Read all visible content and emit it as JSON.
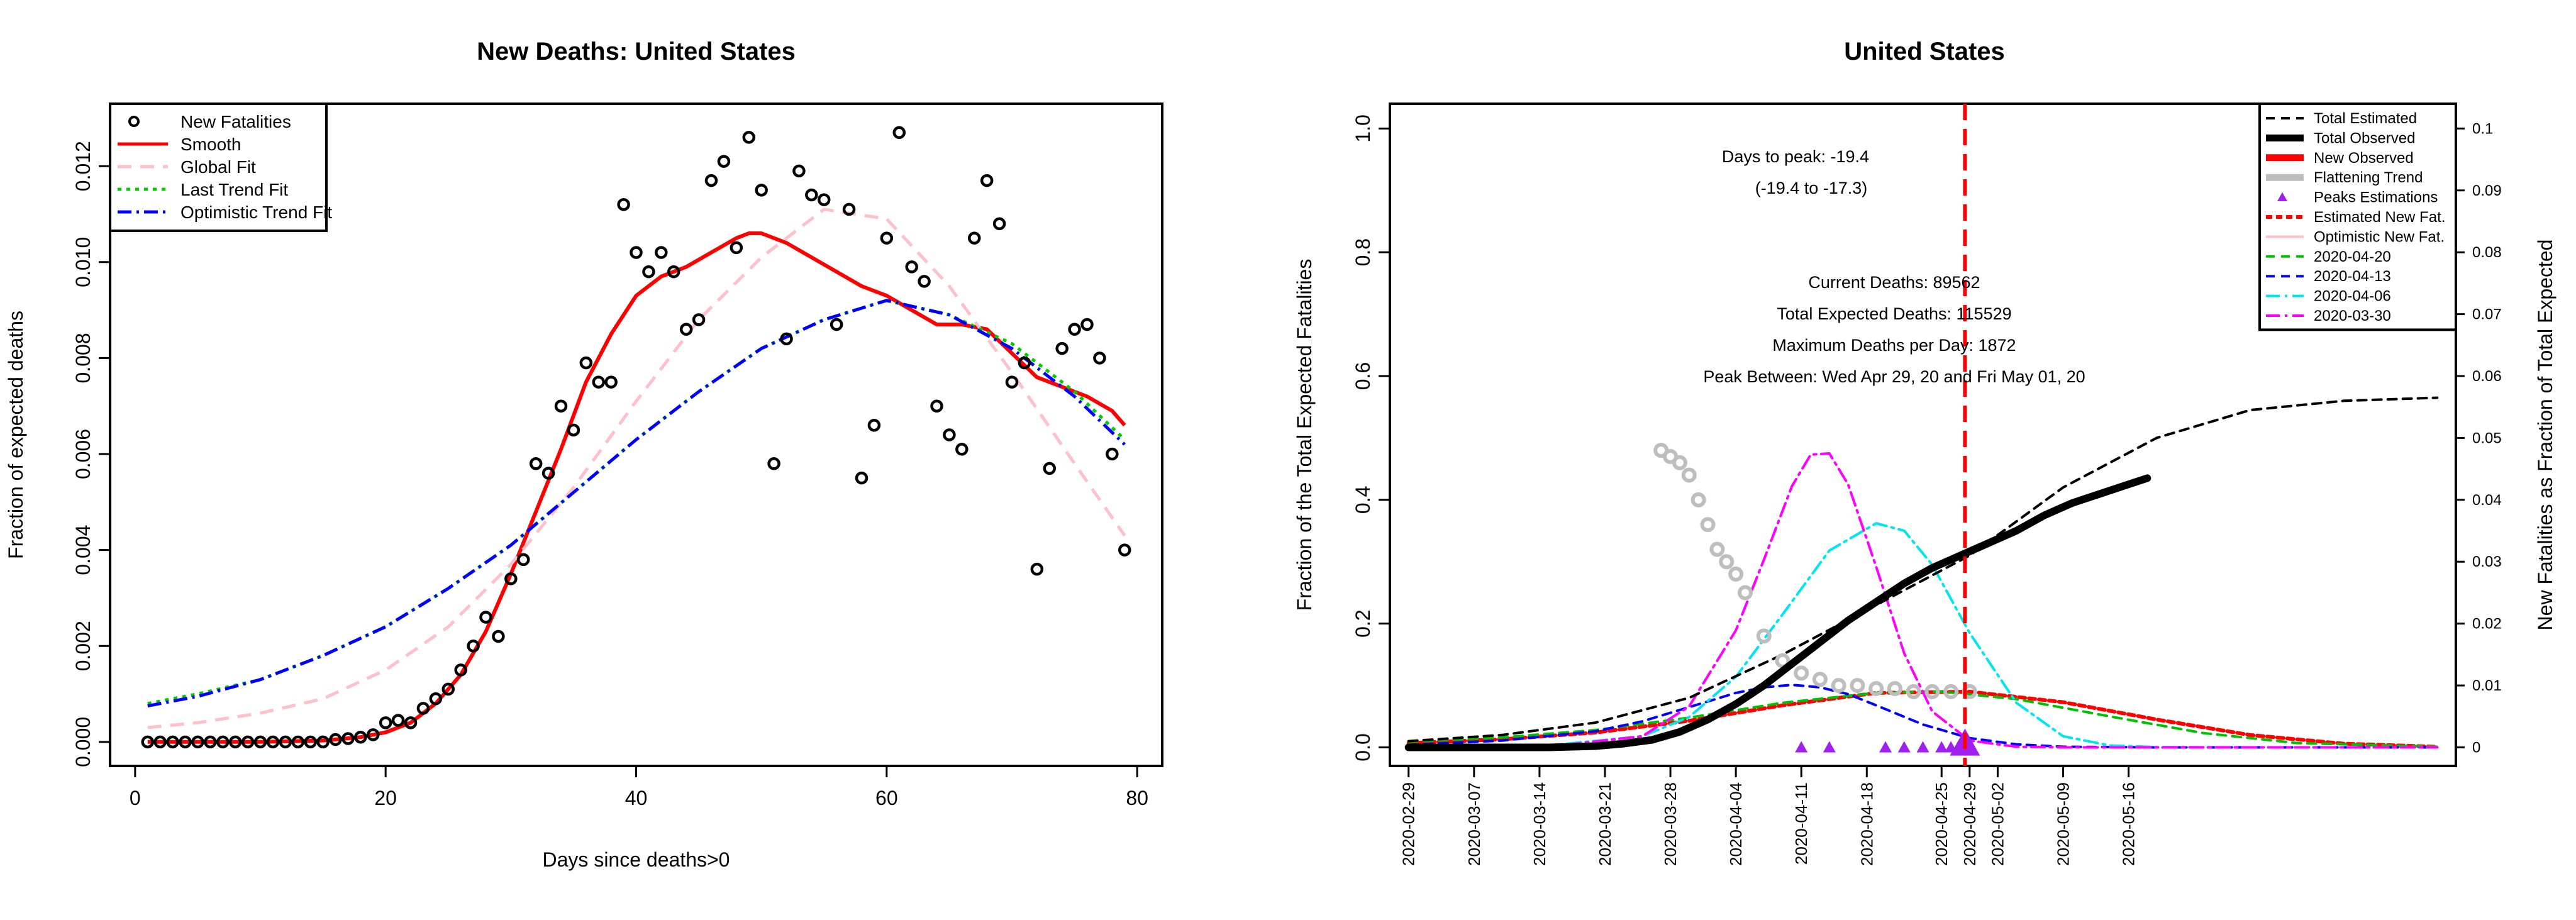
{
  "chart_data": [
    {
      "type": "scatter",
      "title": "New Deaths: United States",
      "xlabel": "Days since deaths>0",
      "ylabel": "Fraction of expected deaths",
      "xlim": [
        -2,
        82
      ],
      "ylim": [
        -0.0005,
        0.0133
      ],
      "xticks": [
        0,
        20,
        40,
        60,
        80
      ],
      "xtick_labels": [
        "0",
        "20",
        "40",
        "60",
        "80"
      ],
      "yticks": [
        0,
        0.002,
        0.004,
        0.006,
        0.008,
        0.01,
        0.012
      ],
      "ytick_labels": [
        "0.000",
        "0.002",
        "0.004",
        "0.006",
        "0.008",
        "0.010",
        "0.012"
      ],
      "legend_position": "top-left",
      "legend": [
        {
          "label": "New Fatalities",
          "color": "#000000",
          "kind": "point"
        },
        {
          "label": "Smooth",
          "color": "#ff0000",
          "kind": "line",
          "dash": ""
        },
        {
          "label": "Global Fit",
          "color": "#ffc0cb",
          "kind": "line",
          "dash": "22,14"
        },
        {
          "label": "Last Trend Fit",
          "color": "#00cc00",
          "kind": "line",
          "dash": "6,8"
        },
        {
          "label": "Optimistic Trend Fit",
          "color": "#0000ff",
          "kind": "line",
          "dash": "22,8,4,8"
        }
      ],
      "points": {
        "name": "New Fatalities",
        "x": [
          1,
          2,
          3,
          4,
          5,
          6,
          7,
          8,
          9,
          10,
          11,
          12,
          13,
          14,
          15,
          16,
          17,
          18,
          19,
          20,
          21,
          22,
          23,
          24,
          25,
          26,
          27,
          28,
          29,
          30,
          31,
          32,
          33,
          34,
          35,
          36,
          37,
          38,
          39,
          40,
          41,
          42,
          43,
          44,
          45,
          46,
          47,
          48,
          49,
          50,
          51,
          52,
          53,
          54,
          55,
          56,
          57,
          58,
          59,
          60,
          61,
          62,
          63,
          64,
          65,
          66,
          67,
          68,
          69,
          70,
          71,
          72,
          73,
          74,
          75,
          76,
          77,
          78,
          79
        ],
        "y": [
          0,
          0,
          0,
          0,
          0,
          0,
          0,
          0,
          0,
          0,
          0,
          0,
          0,
          0,
          0,
          5e-05,
          7e-05,
          0.0001,
          0.00015,
          0.0004,
          0.00045,
          0.0004,
          0.0007,
          0.0009,
          0.0011,
          0.0015,
          0.002,
          0.0026,
          0.0022,
          0.0034,
          0.0038,
          0.0058,
          0.0056,
          0.007,
          0.0065,
          0.0079,
          0.0075,
          0.0075,
          0.0112,
          0.0102,
          0.0098,
          0.0102,
          0.0098,
          0.0086,
          0.0088,
          0.0117,
          0.0121,
          0.0103,
          0.0126,
          0.0115,
          0.0058,
          0.0084,
          0.0119,
          0.0114,
          0.0113,
          0.0087,
          0.0111,
          0.0055,
          0.0066,
          0.0105,
          0.0127,
          0.0099,
          0.0096,
          0.007,
          0.0064,
          0.0061,
          0.0105,
          0.0117,
          0.0108,
          0.0075,
          0.0079,
          0.0036,
          0.0057,
          0.0082,
          0.0086,
          0.0087,
          0.008,
          0.006,
          0.004
        ]
      },
      "series": [
        {
          "name": "Smooth",
          "color": "#ff0000",
          "x": [
            1,
            5,
            10,
            15,
            18,
            20,
            22,
            24,
            26,
            28,
            30,
            32,
            34,
            36,
            38,
            40,
            42,
            44,
            46,
            48,
            49,
            50,
            52,
            54,
            56,
            58,
            60,
            62,
            64,
            66,
            68,
            70,
            72,
            74,
            76,
            78,
            79
          ],
          "y": [
            0,
            0,
            0,
            3e-05,
            0.0001,
            0.0002,
            0.0004,
            0.0008,
            0.0014,
            0.0023,
            0.0035,
            0.0048,
            0.0061,
            0.0075,
            0.0085,
            0.0093,
            0.0097,
            0.0099,
            0.0102,
            0.0105,
            0.0106,
            0.0106,
            0.0104,
            0.0101,
            0.0098,
            0.0095,
            0.0093,
            0.009,
            0.0087,
            0.0087,
            0.0086,
            0.0081,
            0.0076,
            0.0074,
            0.0072,
            0.0069,
            0.0066
          ]
        },
        {
          "name": "Global Fit",
          "color": "#ffc0cb",
          "x": [
            1,
            5,
            10,
            15,
            20,
            25,
            30,
            35,
            40,
            45,
            50,
            55,
            60,
            65,
            70,
            75,
            79
          ],
          "y": [
            0.0003,
            0.0004,
            0.0006,
            0.0009,
            0.0015,
            0.0024,
            0.0037,
            0.0053,
            0.0071,
            0.0088,
            0.0101,
            0.0111,
            0.0109,
            0.0095,
            0.0077,
            0.0058,
            0.0043
          ]
        },
        {
          "name": "Last Trend Fit",
          "color": "#00cc00",
          "x": [
            1,
            5,
            10,
            15,
            20,
            25,
            30,
            35,
            40,
            45,
            50,
            55,
            60,
            65,
            70,
            75,
            79
          ],
          "y": [
            0.0008,
            0.001,
            0.0013,
            0.0018,
            0.0024,
            0.0032,
            0.0041,
            0.0052,
            0.0063,
            0.0073,
            0.0082,
            0.0088,
            0.0092,
            0.0089,
            0.0083,
            0.0073,
            0.0063
          ]
        },
        {
          "name": "Optimistic Trend Fit",
          "color": "#0000ff",
          "x": [
            1,
            5,
            10,
            15,
            20,
            25,
            30,
            35,
            40,
            45,
            50,
            55,
            60,
            65,
            70,
            75,
            79
          ],
          "y": [
            0.00075,
            0.00095,
            0.0013,
            0.0018,
            0.0024,
            0.0032,
            0.0041,
            0.0052,
            0.0063,
            0.0073,
            0.0082,
            0.0088,
            0.0092,
            0.0089,
            0.0082,
            0.0072,
            0.0062
          ]
        }
      ]
    },
    {
      "type": "line",
      "title": "United States",
      "ylabel": "Fraction of the Total Expected Fatalities",
      "y2label": "New Fatalities as Fraction of Total Expected",
      "xlim": [
        -2,
        112
      ],
      "ylim": [
        -0.03,
        1.04
      ],
      "y2lim": [
        -0.003,
        0.104
      ],
      "yticks": [
        0,
        0.2,
        0.4,
        0.6,
        0.8,
        1.0
      ],
      "ytick_labels": [
        "0.0",
        "0.2",
        "0.4",
        "0.6",
        "0.8",
        "1.0"
      ],
      "y2ticks": [
        0,
        0.01,
        0.02,
        0.03,
        0.04,
        0.05,
        0.06,
        0.07,
        0.08,
        0.09,
        0.1
      ],
      "y2tick_labels": [
        "0",
        "0.01",
        "0.02",
        "0.03",
        "0.04",
        "0.05",
        "0.06",
        "0.07",
        "0.08",
        "0.09",
        "0.1"
      ],
      "xticks": [
        0,
        7,
        14,
        21,
        28,
        35,
        42,
        49,
        57,
        60,
        63,
        70,
        77
      ],
      "xtick_labels": [
        "2020-02-29",
        "2020-03-07",
        "2020-03-14",
        "2020-03-21",
        "2020-03-28",
        "2020-04-04",
        "2020-04-11",
        "2020-04-18",
        "2020-04-25",
        "2020-04-29",
        "2020-05-02",
        "2020-05-09",
        "2020-05-16"
      ],
      "legend_position": "top-right",
      "legend": [
        {
          "label": "Total Estimated",
          "color": "#000000",
          "kind": "line",
          "width": 4,
          "dash": "14,10"
        },
        {
          "label": "Total Observed",
          "color": "#000000",
          "kind": "line",
          "width": 12,
          "dash": ""
        },
        {
          "label": "New Observed",
          "color": "#ff0000",
          "kind": "line",
          "width": 12,
          "dash": ""
        },
        {
          "label": "Flattening Trend",
          "color": "#bebebe",
          "kind": "line",
          "width": 12,
          "dash": ""
        },
        {
          "label": "Peaks Estimations",
          "color": "#a020f0",
          "kind": "triangle"
        },
        {
          "label": "Estimated New Fat.",
          "color": "#ff0000",
          "kind": "line",
          "width": 6,
          "dash": "10,6"
        },
        {
          "label": "Optimistic New Fat.",
          "color": "#ffc0cb",
          "kind": "line",
          "width": 4,
          "dash": ""
        },
        {
          "label": "2020-04-20",
          "color": "#00c000",
          "kind": "line",
          "width": 4,
          "dash": "14,10"
        },
        {
          "label": "2020-04-13",
          "color": "#0000ff",
          "kind": "line",
          "width": 4,
          "dash": "14,10"
        },
        {
          "label": "2020-04-06",
          "color": "#00e5ee",
          "kind": "line",
          "width": 4,
          "dash": "22,8,4,8"
        },
        {
          "label": "2020-03-30",
          "color": "#ff00ff",
          "kind": "line",
          "width": 4,
          "dash": "22,8,4,8"
        }
      ],
      "peak_line_x": 59.5,
      "annotations": {
        "days_to_peak": "Days to peak: -19.4",
        "peak_interval": "(-19.4 to -17.3)",
        "current_deaths": "Current Deaths: 89562",
        "total_expected": "Total Expected Deaths: 115529",
        "max_per_day": "Maximum Deaths per Day: 1872",
        "peak_between": "Peak Between: Wed Apr 29, 20 and Fri May 01, 20"
      },
      "series": [
        {
          "name": "Total Estimated",
          "axis": "left",
          "color": "#000000",
          "x": [
            0,
            10,
            20,
            30,
            40,
            50,
            60,
            70,
            80,
            90,
            100,
            110
          ],
          "y": [
            0.01,
            0.02,
            0.04,
            0.08,
            0.15,
            0.23,
            0.31,
            0.42,
            0.5,
            0.545,
            0.56,
            0.565
          ]
        },
        {
          "name": "Total Observed",
          "axis": "left",
          "color": "#000000",
          "x": [
            0,
            5,
            10,
            15,
            20,
            23,
            26,
            29,
            32,
            35,
            38,
            41,
            44,
            47,
            50,
            53,
            56,
            59,
            62,
            65,
            68,
            71,
            74,
            77,
            79
          ],
          "y": [
            0,
            0,
            0,
            0,
            0.002,
            0.006,
            0.012,
            0.025,
            0.045,
            0.07,
            0.1,
            0.135,
            0.17,
            0.205,
            0.235,
            0.265,
            0.29,
            0.31,
            0.33,
            0.35,
            0.375,
            0.395,
            0.41,
            0.425,
            0.435
          ]
        },
        {
          "name": "Flattening Trend",
          "axis": "right",
          "color": "#bebebe",
          "x": [
            27,
            28,
            29,
            30,
            31,
            32,
            33,
            34,
            35,
            36,
            38,
            40,
            42,
            44,
            46,
            48,
            50,
            52,
            54,
            56,
            58,
            60
          ],
          "y": [
            0.048,
            0.047,
            0.046,
            0.044,
            0.04,
            0.036,
            0.032,
            0.03,
            0.028,
            0.025,
            0.018,
            0.014,
            0.012,
            0.011,
            0.01,
            0.01,
            0.0095,
            0.0095,
            0.009,
            0.009,
            0.009,
            0.009
          ]
        },
        {
          "name": "Estimated New Fat.",
          "axis": "right",
          "color": "#ff0000",
          "x": [
            0,
            10,
            20,
            30,
            40,
            50,
            60,
            70,
            80,
            90,
            100,
            110
          ],
          "y": [
            0.0007,
            0.0013,
            0.0024,
            0.0043,
            0.0068,
            0.0088,
            0.009,
            0.0073,
            0.0045,
            0.002,
            0.0006,
            0.0001
          ]
        },
        {
          "name": "2020-04-20",
          "axis": "right",
          "color": "#00c000",
          "x": [
            0,
            10,
            20,
            30,
            40,
            50,
            57,
            65,
            75,
            85,
            95,
            110
          ],
          "y": [
            0.0009,
            0.0016,
            0.0028,
            0.0048,
            0.0072,
            0.0088,
            0.009,
            0.0078,
            0.005,
            0.0023,
            0.0007,
            0.0001
          ]
        },
        {
          "name": "2020-04-13",
          "axis": "right",
          "color": "#0000ff",
          "x": [
            0,
            10,
            20,
            25,
            30,
            35,
            38,
            41,
            44,
            47,
            50,
            55,
            60,
            65,
            70,
            80,
            110
          ],
          "y": [
            0.0004,
            0.0011,
            0.0026,
            0.0042,
            0.0065,
            0.0088,
            0.0097,
            0.0101,
            0.0097,
            0.0086,
            0.0068,
            0.0037,
            0.0015,
            0.0005,
            0.0001,
            0,
            0
          ]
        },
        {
          "name": "2020-04-06",
          "axis": "right",
          "color": "#00e5ee",
          "x": [
            0,
            15,
            25,
            30,
            35,
            40,
            45,
            50,
            53,
            56,
            60,
            65,
            70,
            75,
            80,
            90,
            110
          ],
          "y": [
            0,
            0.0003,
            0.0018,
            0.0049,
            0.0114,
            0.0215,
            0.0318,
            0.0362,
            0.035,
            0.0295,
            0.0185,
            0.0072,
            0.0018,
            0.0003,
            5e-05,
            0,
            0
          ]
        },
        {
          "name": "2020-03-30",
          "axis": "right",
          "color": "#ff00ff",
          "x": [
            0,
            15,
            25,
            30,
            35,
            38,
            41,
            43,
            45,
            47,
            50,
            53,
            56,
            60,
            65,
            70,
            80,
            110
          ],
          "y": [
            0,
            0.0001,
            0.0018,
            0.0066,
            0.0189,
            0.0303,
            0.0422,
            0.0473,
            0.0475,
            0.0425,
            0.0292,
            0.0152,
            0.0058,
            0.0011,
            0.0001,
            0,
            0,
            0
          ]
        },
        {
          "name": "Peaks Estimations",
          "axis": "right",
          "color": "#a020f0",
          "kind": "triangle",
          "x": [
            42,
            45,
            51,
            53,
            55,
            57,
            58,
            59,
            60
          ],
          "y": [
            0,
            0,
            0,
            0,
            0,
            0,
            0,
            0,
            0
          ]
        }
      ]
    }
  ]
}
